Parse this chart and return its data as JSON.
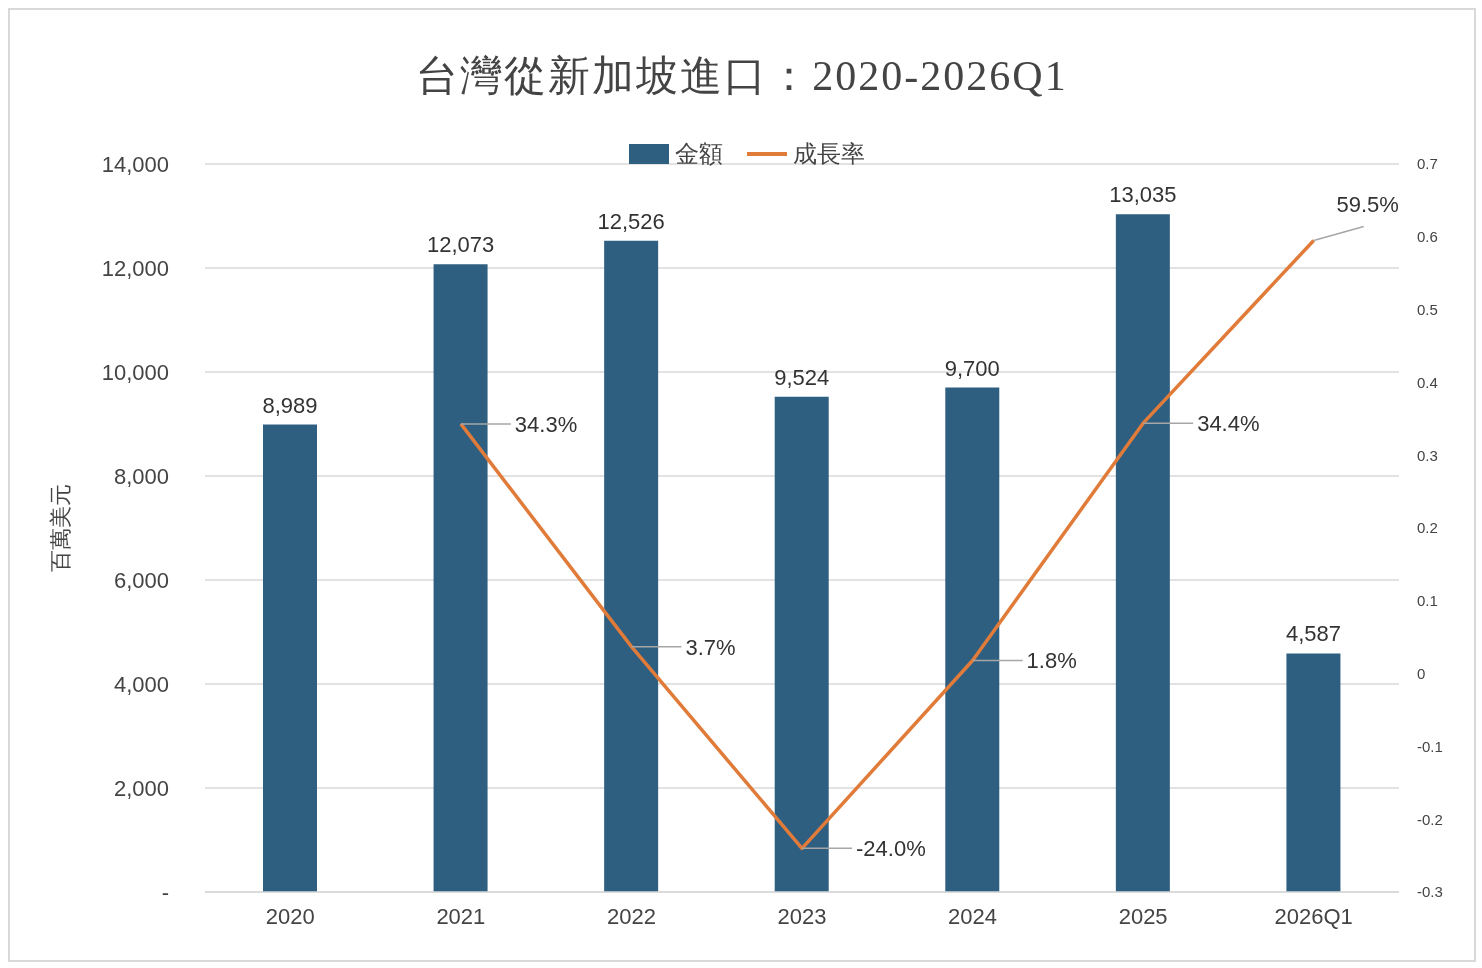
{
  "chart_data": {
    "type": "bar",
    "title": "台灣從新加坡進口：2020-2026Q1",
    "ylabel": "百萬美元",
    "categories": [
      "2020",
      "2021",
      "2022",
      "2023",
      "2024",
      "2025",
      "2026Q1"
    ],
    "series": [
      {
        "name": "金額",
        "color": "#2e5f80",
        "values": [
          8989,
          12073,
          12526,
          9524,
          9700,
          13035,
          4587
        ],
        "value_labels": [
          "8,989",
          "12,073",
          "12,526",
          "9,524",
          "9,700",
          "13,035",
          "4,587"
        ]
      },
      {
        "name": "成長率",
        "type": "line",
        "axis": "y2",
        "color": "#e07b39",
        "values": [
          null,
          0.343,
          0.037,
          -0.24,
          0.018,
          0.344,
          0.595
        ],
        "value_labels": [
          null,
          "34.3%",
          "3.7%",
          "-24.0%",
          "1.8%",
          "34.4%",
          "59.5%"
        ]
      }
    ],
    "ylim": [
      0,
      14000
    ],
    "yticks": [
      {
        "value": 0,
        "label": "-"
      },
      {
        "value": 2000,
        "label": "2,000"
      },
      {
        "value": 4000,
        "label": "4,000"
      },
      {
        "value": 6000,
        "label": "6,000"
      },
      {
        "value": 8000,
        "label": "8,000"
      },
      {
        "value": 10000,
        "label": "10,000"
      },
      {
        "value": 12000,
        "label": "12,000"
      },
      {
        "value": 14000,
        "label": "14,000"
      }
    ],
    "y2lim": [
      -0.3,
      0.7
    ],
    "y2ticks": [
      -0.3,
      -0.2,
      -0.1,
      0,
      0.1,
      0.2,
      0.3,
      0.4,
      0.5,
      0.6,
      0.7
    ],
    "grid": "y",
    "legend": "top",
    "marker": "none",
    "line_style": "solid"
  }
}
